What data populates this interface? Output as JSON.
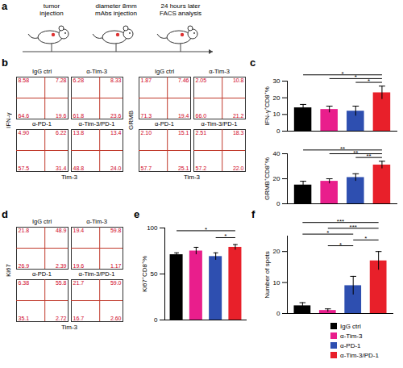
{
  "panel_labels": [
    "a",
    "b",
    "c",
    "d",
    "e",
    "f"
  ],
  "schematic": {
    "steps": [
      [
        "tumor",
        "injection"
      ],
      [
        "diameter 8mm",
        "mAbs injection"
      ],
      [
        "24 hours later",
        "FACS analysis"
      ]
    ]
  },
  "flow": [
    {
      "y_label": "IFN-γ",
      "x_label": "Tim-3",
      "plots": [
        {
          "title": "IgG ctrl",
          "quadrants": [
            8.58,
            7.28,
            64.6,
            19.6
          ]
        },
        {
          "title": "α-Tim-3",
          "quadrants": [
            6.28,
            8.33,
            61.8,
            23.6
          ]
        },
        {
          "title": "α-PD-1",
          "quadrants": [
            {
              "value": 4.9,
              "label": "4.90"
            },
            6.22,
            57.5,
            31.4
          ]
        },
        {
          "title": "α-Tim-3/PD-1",
          "quadrants": [
            13.8,
            13.4,
            48.8,
            {
              "value": 24,
              "label": "24.0"
            }
          ]
        }
      ]
    },
    {
      "y_label": "GRMB",
      "x_label": "Tim-3",
      "plots": [
        {
          "title": "IgG ctrl",
          "quadrants": [
            1.87,
            7.46,
            71.3,
            19.4
          ]
        },
        {
          "title": "α-Tim-3",
          "quadrants": [
            2.05,
            10.8,
            {
              "value": 66,
              "label": "66.0"
            },
            21.2
          ]
        },
        {
          "title": "α-PD-1",
          "quadrants": [
            {
              "value": 2.1,
              "label": "2.10"
            },
            15.1,
            57.7,
            25.1
          ]
        },
        {
          "title": "α-Tim-3/PD-1",
          "quadrants": [
            2.51,
            18.3,
            57.2,
            {
              "value": 22,
              "label": "22.0"
            }
          ]
        }
      ]
    },
    {
      "y_label": "Ki67",
      "x_label": "Tim-3",
      "plots": [
        {
          "title": "IgG ctrl",
          "quadrants": [
            21.8,
            48.9,
            26.9,
            2.39
          ]
        },
        {
          "title": "α-Tim-3",
          "quadrants": [
            19.4,
            59.8,
            19.6,
            1.17
          ]
        },
        {
          "title": "α-PD-1",
          "quadrants": [
            6.38,
            55.8,
            35.1,
            2.72
          ]
        },
        {
          "title": "α-Tim-3/PD-1",
          "quadrants": [
            21.7,
            {
              "value": 59,
              "label": "59.0"
            },
            16.7,
            {
              "value": 2.6,
              "label": "2.60"
            }
          ]
        }
      ]
    }
  ],
  "chart_data": [
    {
      "type": "bar",
      "y_label": "IFN-γ⁺CD8⁺%",
      "categories": [
        "IgG ctrl",
        "α-Tim-3",
        "α-PD-1",
        "α-Tim-3/PD-1"
      ],
      "colors": [
        "#000000",
        "#e91e8c",
        "#2e4fb0",
        "#e8202a"
      ],
      "values": [
        14,
        13,
        12,
        23
      ],
      "errors": [
        2,
        2,
        3,
        4
      ],
      "ylim": [
        0,
        30
      ],
      "yticks": [
        0,
        10,
        20,
        30
      ],
      "tick_labels": "y",
      "significance": [
        {
          "from": 2,
          "to": 3,
          "label": "*"
        },
        {
          "from": 1,
          "to": 3,
          "label": "*"
        },
        {
          "from": 0,
          "to": 3,
          "label": "*"
        }
      ]
    },
    {
      "type": "bar",
      "y_label": "GRMB⁺CD8⁺%",
      "categories": [
        "IgG ctrl",
        "α-Tim-3",
        "α-PD-1",
        "α-Tim-3/PD-1"
      ],
      "colors": [
        "#000000",
        "#e91e8c",
        "#2e4fb0",
        "#e8202a"
      ],
      "values": [
        15,
        18,
        21,
        31
      ],
      "errors": [
        3,
        2,
        3,
        3
      ],
      "ylim": [
        0,
        40
      ],
      "yticks": [
        0,
        20,
        40
      ],
      "tick_labels": "y",
      "significance": [
        {
          "from": 2,
          "to": 3,
          "label": "**"
        },
        {
          "from": 1,
          "to": 3,
          "label": "**"
        },
        {
          "from": 0,
          "to": 3,
          "label": "**"
        }
      ]
    },
    {
      "type": "bar",
      "y_label": "Ki67⁺CD8⁺%",
      "categories": [
        "IgG ctrl",
        "α-Tim-3",
        "α-PD-1",
        "α-Tim-3/PD-1"
      ],
      "colors": [
        "#000000",
        "#e91e8c",
        "#2e4fb0",
        "#e8202a"
      ],
      "values": [
        71,
        75,
        69,
        79
      ],
      "errors": [
        2,
        4,
        4,
        3
      ],
      "ylim": [
        0,
        100
      ],
      "yticks": [
        0,
        50,
        100
      ],
      "tick_labels": "y",
      "significance": [
        {
          "from": 2,
          "to": 3,
          "label": "*"
        },
        {
          "from": 0,
          "to": 3,
          "label": "*"
        }
      ]
    },
    {
      "type": "bar",
      "y_label": "Number of spots",
      "categories": [
        "IgG ctrl",
        "α-Tim-3",
        "α-PD-1",
        "α-Tim-3/PD-1"
      ],
      "colors": [
        "#000000",
        "#e91e8c",
        "#2e4fb0",
        "#e8202a"
      ],
      "values": [
        2.5,
        1,
        9,
        17
      ],
      "errors": [
        1,
        0.5,
        3,
        3
      ],
      "ylim": [
        0,
        25
      ],
      "yticks": [
        0,
        10,
        20
      ],
      "tick_labels": "y",
      "legend": "bottom-right",
      "significance": [
        {
          "from": 1,
          "to": 2,
          "label": "*"
        },
        {
          "from": 2,
          "to": 3,
          "label": "*"
        },
        {
          "from": 0,
          "to": 2,
          "label": "*"
        },
        {
          "from": 1,
          "to": 3,
          "label": "***"
        },
        {
          "from": 0,
          "to": 3,
          "label": "***"
        }
      ]
    }
  ]
}
